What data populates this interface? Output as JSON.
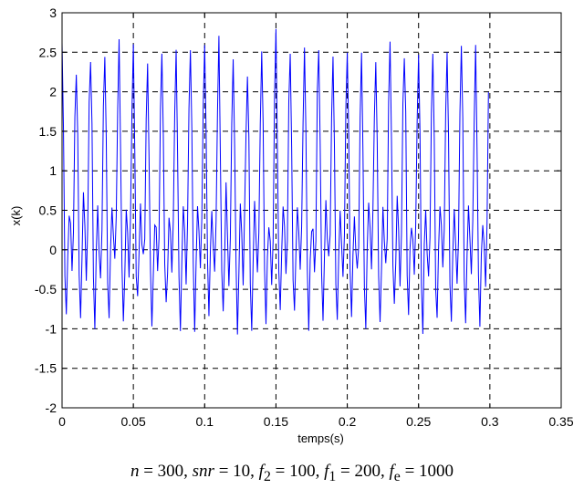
{
  "chart_data": {
    "type": "line",
    "title": "",
    "xlabel": "temps(s)",
    "ylabel": "x(k)",
    "xlim": [
      0,
      0.35
    ],
    "ylim": [
      -2,
      3
    ],
    "xticks": [
      0,
      0.05,
      0.1,
      0.15,
      0.2,
      0.25,
      0.3,
      0.35
    ],
    "xtick_labels": [
      "0",
      "0.05",
      "0.1",
      "0.15",
      "0.2",
      "0.25",
      "0.3",
      "0.35"
    ],
    "yticks": [
      -2,
      -1.5,
      -1,
      -0.5,
      0,
      0.5,
      1,
      1.5,
      2,
      2.5,
      3
    ],
    "ytick_labels": [
      "-2",
      "-1.5",
      "-1",
      "-0.5",
      "0",
      "0.5",
      "1",
      "1.5",
      "2",
      "2.5",
      "3"
    ],
    "grid": true,
    "series": [
      {
        "color": "#0000ff",
        "amplitude_f1": 1.0,
        "amplitude_f2": 1.0,
        "offset": 0.5,
        "f1_hz": 200,
        "f2_hz": 100,
        "fe_hz": 1000,
        "n_samples": 300,
        "x_start": 0,
        "x_end": 0.299
      }
    ]
  },
  "caption": {
    "n_name": "n",
    "n_value": "300",
    "snr_name": "snr",
    "snr_value": "10",
    "f_letter": "f",
    "f2_sub": "2",
    "f2_value": "100",
    "f1_sub": "1",
    "f1_value": "200",
    "fe_sub": "e",
    "fe_value": "1000"
  }
}
